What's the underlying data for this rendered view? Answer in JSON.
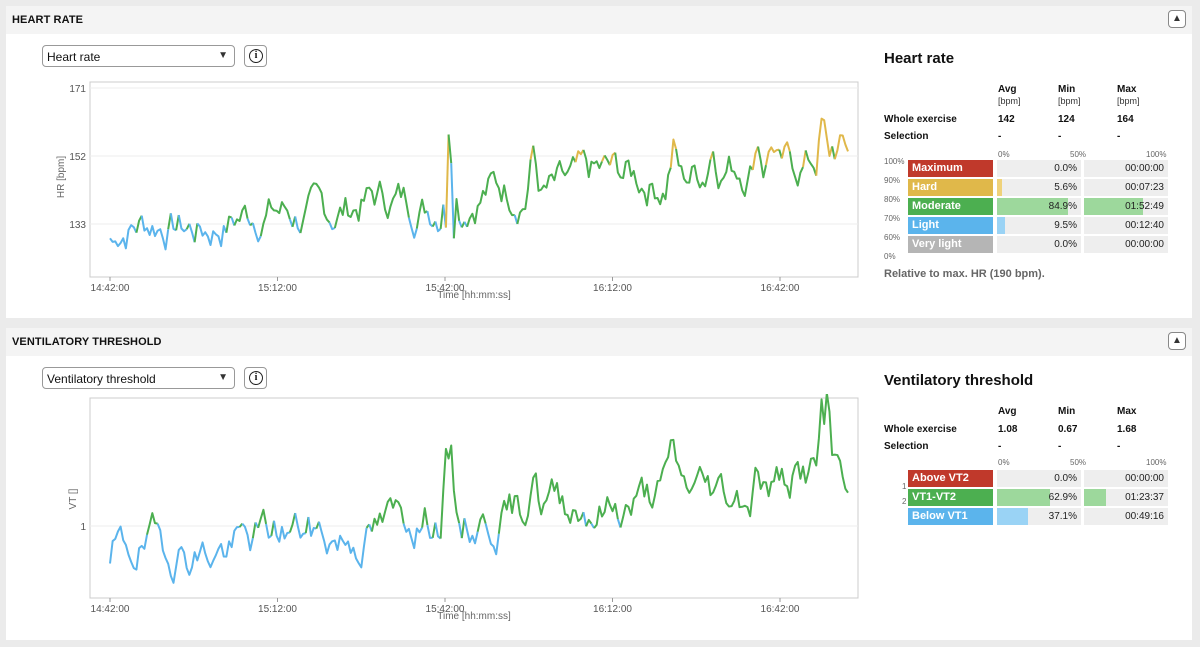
{
  "heart_rate_section": {
    "title": "HEART RATE",
    "selector_value": "Heart rate",
    "chart": {
      "ylabel": "HR [bpm]",
      "xlabel": "Time [hh:mm:ss]",
      "yticks": [
        "171",
        "152",
        "133"
      ],
      "xticks": [
        "14:42:00",
        "15:12:00",
        "15:42:00",
        "16:12:00",
        "16:42:00"
      ]
    },
    "panel": {
      "title": "Heart rate",
      "headers": [
        "Avg",
        "Min",
        "Max"
      ],
      "units": [
        "[bpm]",
        "[bpm]",
        "[bpm]"
      ],
      "rows": [
        {
          "label": "Whole exercise",
          "values": [
            "142",
            "124",
            "164"
          ]
        },
        {
          "label": "Selection",
          "values": [
            "-",
            "-",
            "-"
          ]
        }
      ],
      "scale": [
        "0%",
        "50%",
        "100%"
      ],
      "pct_scale": [
        "100%",
        "90%",
        "80%",
        "70%",
        "60%",
        "0%"
      ],
      "zones": [
        {
          "label": "Maximum",
          "pct": "0.0%",
          "time": "00:00:00",
          "color": "#c0392b",
          "fill": 0.0,
          "fill_color": "#e08070"
        },
        {
          "label": "Hard",
          "pct": "5.6%",
          "time": "00:07:23",
          "color": "#e0b84a",
          "fill": 0.056,
          "fill_color": "#efd27a"
        },
        {
          "label": "Moderate",
          "pct": "84.9%",
          "time": "01:52:49",
          "color": "#4caf50",
          "fill": 0.849,
          "fill_color": "#9dd89c"
        },
        {
          "label": "Light",
          "pct": "9.5%",
          "time": "00:12:40",
          "color": "#5bb4ec",
          "fill": 0.095,
          "fill_color": "#9ad3f5"
        },
        {
          "label": "Very light",
          "pct": "0.0%",
          "time": "00:00:00",
          "color": "#b5b5b5",
          "fill": 0.0,
          "fill_color": "#ccc"
        }
      ],
      "footnote": "Relative to max. HR (190 bpm)."
    }
  },
  "vt_section": {
    "title": "VENTILATORY THRESHOLD",
    "selector_value": "Ventilatory threshold",
    "chart": {
      "ylabel": "VT []",
      "xlabel": "Time [hh:mm:ss]",
      "yticks": [
        "1"
      ],
      "xticks": [
        "14:42:00",
        "15:12:00",
        "15:42:00",
        "16:12:00",
        "16:42:00"
      ]
    },
    "panel": {
      "title": "Ventilatory threshold",
      "headers": [
        "Avg",
        "Min",
        "Max"
      ],
      "rows": [
        {
          "label": "Whole exercise",
          "values": [
            "1.08",
            "0.67",
            "1.68"
          ]
        },
        {
          "label": "Selection",
          "values": [
            "-",
            "-",
            "-"
          ]
        }
      ],
      "scale": [
        "0%",
        "50%",
        "100%"
      ],
      "side_scale": [
        "1",
        "2"
      ],
      "zones": [
        {
          "label": "Above VT2",
          "pct": "0.0%",
          "time": "00:00:00",
          "color": "#c0392b",
          "fill": 0.0,
          "fill_color": "#e08070"
        },
        {
          "label": "VT1-VT2",
          "pct": "62.9%",
          "time": "01:23:37",
          "color": "#4caf50",
          "fill": 0.629,
          "fill_color": "#9dd89c"
        },
        {
          "label": "Below VT1",
          "pct": "37.1%",
          "time": "00:49:16",
          "color": "#5bb4ec",
          "fill": 0.371,
          "fill_color": "#9ad3f5"
        }
      ]
    }
  },
  "colors": {
    "light": "#5bb4ec",
    "moderate": "#4caf50",
    "hard": "#e0b84a"
  }
}
